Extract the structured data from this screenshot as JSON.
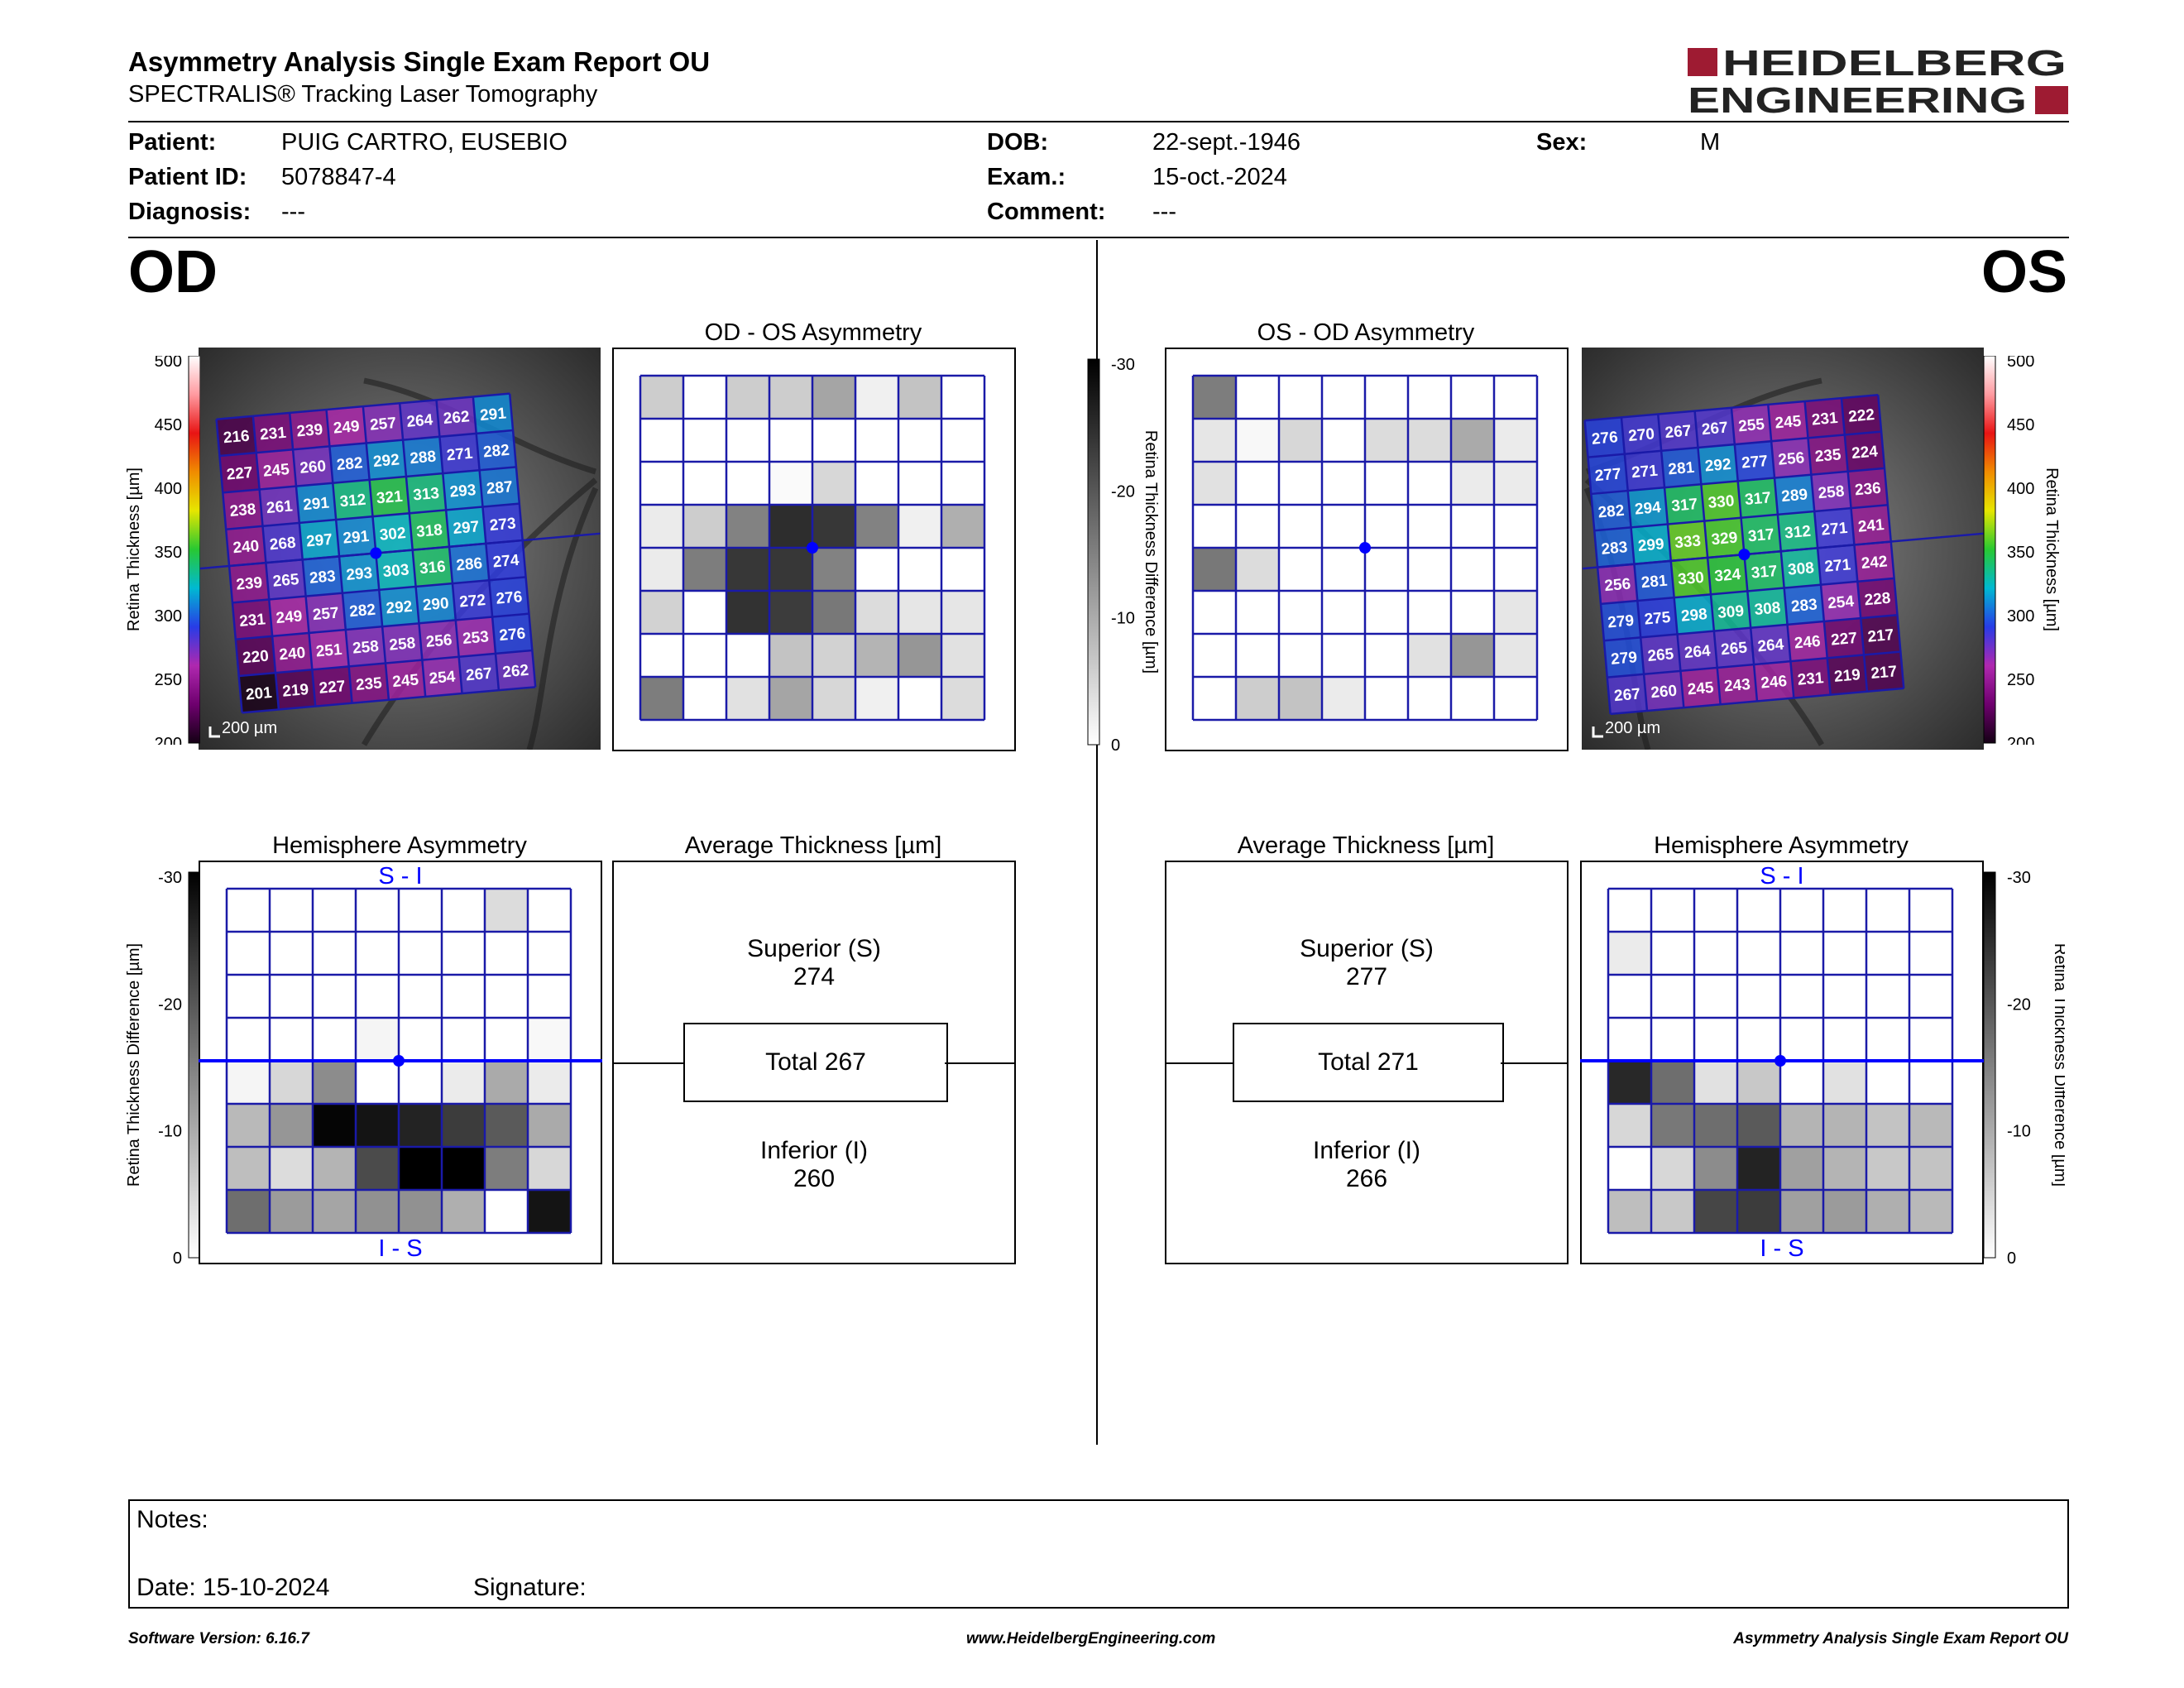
{
  "header": {
    "title": "Asymmetry Analysis Single Exam Report OU",
    "subtitle": "SPECTRALIS® Tracking Laser Tomography",
    "logo_line1": "HEIDELBERG",
    "logo_line2": "ENGINEERING",
    "brand_color": "#9e1b32"
  },
  "patient": {
    "patient_label": "Patient:",
    "patient": "PUIG CARTRO, EUSEBIO",
    "id_label": "Patient ID:",
    "id": "5078847-4",
    "diagnosis_label": "Diagnosis:",
    "diagnosis": "---",
    "dob_label": "DOB:",
    "dob": "22-sept.-1946",
    "exam_label": "Exam.:",
    "exam": "15-oct.-2024",
    "comment_label": "Comment:",
    "comment": "---",
    "sex_label": "Sex:",
    "sex": "M"
  },
  "od": {
    "eye_label": "OD",
    "thickness_map": {
      "values": [
        [
          216,
          231,
          239,
          249,
          257,
          264,
          262,
          291
        ],
        [
          227,
          245,
          260,
          282,
          292,
          288,
          271,
          282
        ],
        [
          238,
          261,
          291,
          312,
          321,
          313,
          293,
          287
        ],
        [
          240,
          268,
          297,
          291,
          302,
          318,
          297,
          273
        ],
        [
          239,
          265,
          283,
          293,
          303,
          316,
          286,
          274
        ],
        [
          231,
          249,
          257,
          282,
          292,
          290,
          272,
          276
        ],
        [
          220,
          240,
          251,
          258,
          258,
          256,
          253,
          276
        ],
        [
          201,
          219,
          227,
          235,
          245,
          254,
          267,
          262
        ]
      ],
      "scale_label": "200 µm",
      "axis_label": "Retina Thickness [µm]",
      "ticks": [
        "500",
        "450",
        "400",
        "350",
        "300",
        "250",
        "200"
      ]
    },
    "asymmetry": {
      "title": "OD - OS Asymmetry",
      "grays": [
        [
          205,
          255,
          205,
          205,
          165,
          240,
          195,
          255
        ],
        [
          255,
          255,
          255,
          255,
          255,
          255,
          255,
          255
        ],
        [
          255,
          255,
          255,
          250,
          215,
          255,
          255,
          255
        ],
        [
          235,
          205,
          130,
          45,
          55,
          130,
          240,
          175
        ],
        [
          235,
          125,
          55,
          55,
          130,
          255,
          255,
          255
        ],
        [
          210,
          255,
          50,
          60,
          120,
          220,
          230,
          230
        ],
        [
          255,
          255,
          255,
          195,
          210,
          180,
          150,
          225
        ],
        [
          125,
          255,
          225,
          165,
          215,
          240,
          255,
          220
        ]
      ]
    },
    "hemisphere": {
      "title": "Hemisphere Asymmetry",
      "top_label": "S - I",
      "bottom_label": "I - S",
      "grays": [
        [
          255,
          255,
          255,
          255,
          255,
          255,
          220,
          255
        ],
        [
          255,
          255,
          255,
          255,
          255,
          255,
          255,
          255
        ],
        [
          255,
          255,
          255,
          255,
          255,
          255,
          255,
          255
        ],
        [
          255,
          255,
          255,
          245,
          255,
          255,
          255,
          248
        ],
        [
          245,
          215,
          140,
          255,
          255,
          235,
          170,
          235
        ],
        [
          185,
          150,
          5,
          20,
          35,
          60,
          90,
          170
        ],
        [
          190,
          220,
          180,
          75,
          0,
          0,
          125,
          215
        ],
        [
          110,
          155,
          165,
          145,
          145,
          175,
          255,
          20
        ]
      ]
    },
    "average": {
      "title": "Average Thickness [µm]",
      "superior_label": "Superior (S)",
      "superior": "274",
      "total_label": "Total 267",
      "inferior_label": "Inferior (I)",
      "inferior": "260"
    }
  },
  "os": {
    "eye_label": "OS",
    "thickness_map": {
      "values": [
        [
          276,
          270,
          267,
          267,
          255,
          245,
          231,
          222
        ],
        [
          277,
          271,
          281,
          292,
          277,
          256,
          235,
          224
        ],
        [
          282,
          294,
          317,
          330,
          317,
          289,
          258,
          236
        ],
        [
          283,
          299,
          333,
          329,
          317,
          312,
          271,
          241
        ],
        [
          256,
          281,
          330,
          324,
          317,
          308,
          271,
          242
        ],
        [
          279,
          275,
          298,
          309,
          308,
          283,
          254,
          228
        ],
        [
          279,
          265,
          264,
          265,
          264,
          246,
          227,
          217
        ],
        [
          267,
          260,
          245,
          243,
          246,
          231,
          219,
          217
        ]
      ],
      "scale_label": "200 µm",
      "axis_label": "Retina Thickness [µm]",
      "ticks": [
        "500",
        "450",
        "400",
        "350",
        "300",
        "250",
        "200"
      ]
    },
    "asymmetry": {
      "title": "OS - OD Asymmetry",
      "grays": [
        [
          125,
          255,
          255,
          255,
          255,
          255,
          255,
          255
        ],
        [
          230,
          248,
          215,
          255,
          220,
          220,
          170,
          235
        ],
        [
          225,
          255,
          255,
          255,
          255,
          255,
          235,
          235
        ],
        [
          255,
          255,
          255,
          255,
          255,
          255,
          255,
          255
        ],
        [
          120,
          220,
          255,
          255,
          255,
          255,
          255,
          255
        ],
        [
          255,
          255,
          255,
          255,
          255,
          255,
          255,
          230
        ],
        [
          255,
          255,
          255,
          255,
          255,
          225,
          150,
          230
        ],
        [
          255,
          205,
          195,
          235,
          255,
          255,
          255,
          255
        ]
      ]
    },
    "hemisphere": {
      "title": "Hemisphere Asymmetry",
      "top_label": "S - I",
      "bottom_label": "I - S",
      "grays": [
        [
          255,
          255,
          255,
          255,
          255,
          255,
          255,
          255
        ],
        [
          235,
          255,
          255,
          255,
          255,
          255,
          255,
          255
        ],
        [
          255,
          255,
          255,
          255,
          255,
          255,
          255,
          255
        ],
        [
          255,
          255,
          255,
          255,
          255,
          255,
          255,
          255
        ],
        [
          40,
          110,
          225,
          200,
          255,
          225,
          255,
          255
        ],
        [
          215,
          120,
          110,
          90,
          180,
          180,
          195,
          185
        ],
        [
          255,
          215,
          140,
          35,
          160,
          180,
          200,
          195
        ],
        [
          190,
          200,
          70,
          60,
          160,
          155,
          175,
          185
        ]
      ]
    },
    "average": {
      "title": "Average Thickness [µm]",
      "superior_label": "Superior (S)",
      "superior": "277",
      "total_label": "Total 271",
      "inferior_label": "Inferior (I)",
      "inferior": "266"
    }
  },
  "diff_scale": {
    "axis_label": "Retina Thickness Difference [µm]",
    "ticks": [
      "-30",
      "-20",
      "-10",
      "0"
    ]
  },
  "notes": {
    "notes_label": "Notes:",
    "date_label": "Date: 15-10-2024",
    "signature_label": "Signature:"
  },
  "footer": {
    "version": "Software Version: 6.16.7",
    "website": "www.HeidelbergEngineering.com",
    "report_name": "Asymmetry Analysis Single Exam Report OU"
  },
  "colors": {
    "grid_blue": "#1a1aa8",
    "fovea_blue": "#0000ff"
  }
}
